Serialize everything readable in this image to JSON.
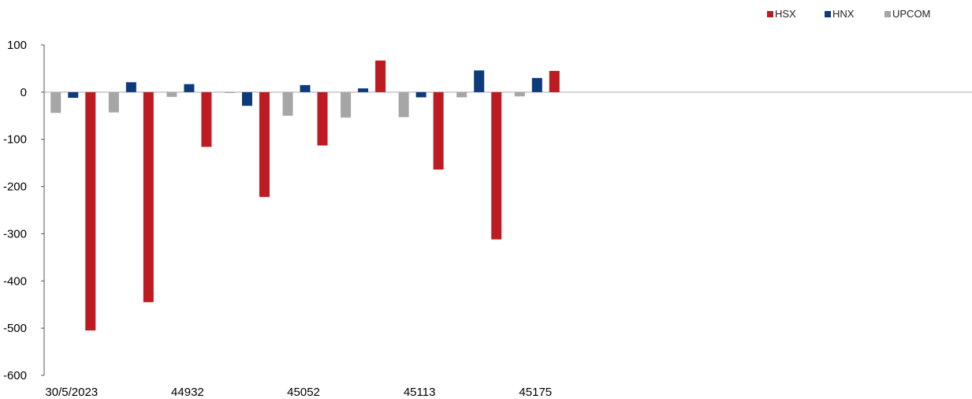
{
  "chart_data": {
    "type": "bar",
    "categories": [
      "30/5/2023",
      "",
      "44932",
      "",
      "45052",
      "",
      "45113",
      "",
      "45175",
      "",
      "",
      "",
      "",
      "",
      "",
      ""
    ],
    "series": [
      {
        "name": "UPCOM",
        "color": "#a6a6a6",
        "values": [
          -44,
          -43,
          -10,
          -2,
          -50,
          -54,
          -53,
          -11,
          -9,
          null,
          null,
          null,
          null,
          null,
          null,
          null
        ]
      },
      {
        "name": "HNX",
        "color": "#0d3a7a",
        "values": [
          -12,
          21,
          17,
          -29,
          15,
          8,
          -11,
          46,
          30,
          null,
          null,
          null,
          null,
          null,
          null,
          null
        ]
      },
      {
        "name": "HSX",
        "color": "#be1a21",
        "values": [
          -505,
          -445,
          -116,
          -222,
          -113,
          67,
          -164,
          -312,
          45,
          null,
          null,
          null,
          null,
          null,
          null,
          null
        ]
      }
    ],
    "legend_order": [
      "HSX",
      "HNX",
      "UPCOM"
    ],
    "legend_position": "top-right",
    "ylim": [
      -600,
      100
    ],
    "yticks": [
      "100",
      "0",
      "-100",
      "-200",
      "-300",
      "-400",
      "-500",
      "-600"
    ],
    "ytick_values": [
      100,
      0,
      -100,
      -200,
      -300,
      -400,
      -500,
      -600
    ],
    "xticks": [
      "30/5/2023",
      "44932",
      "45052",
      "45113",
      "45175"
    ],
    "grid": false
  }
}
